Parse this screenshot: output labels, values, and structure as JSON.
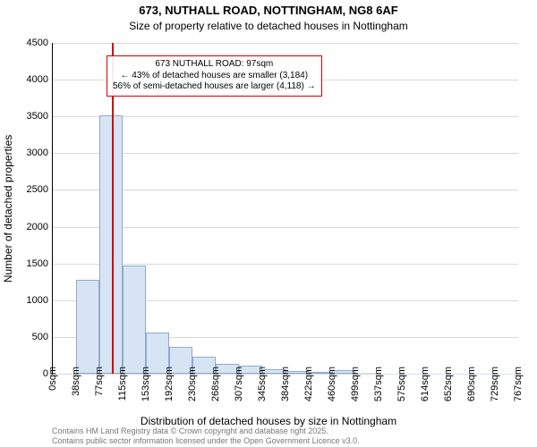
{
  "title": "673, NUTHALL ROAD, NOTTINGHAM, NG8 6AF",
  "subtitle": "Size of property relative to detached houses in Nottingham",
  "ylabel": "Number of detached properties",
  "xlabel": "Distribution of detached houses by size in Nottingham",
  "footnote_line1": "Contains HM Land Registry data © Crown copyright and database right 2025.",
  "footnote_line2": "Contains public sector information licensed under the Open Government Licence v3.0.",
  "chart": {
    "type": "histogram",
    "background_color": "#ffffff",
    "grid_color": "#d8d8d8",
    "axis_color": "#000000",
    "title_fontsize": 13,
    "subtitle_fontsize": 12,
    "label_fontsize": 12,
    "tick_fontsize": 11,
    "footnote_fontsize": 9,
    "footnote_color": "#777777",
    "ylim": [
      0,
      4500
    ],
    "yticks": [
      0,
      500,
      1000,
      1500,
      2000,
      2500,
      3000,
      3500,
      4000,
      4500
    ],
    "xticks": [
      "0sqm",
      "38sqm",
      "77sqm",
      "115sqm",
      "153sqm",
      "192sqm",
      "230sqm",
      "268sqm",
      "307sqm",
      "345sqm",
      "384sqm",
      "422sqm",
      "460sqm",
      "499sqm",
      "537sqm",
      "575sqm",
      "614sqm",
      "652sqm",
      "690sqm",
      "729sqm",
      "767sqm"
    ],
    "bars": {
      "values": [
        0,
        1280,
        3520,
        1470,
        560,
        370,
        230,
        130,
        110,
        60,
        40,
        20,
        50,
        10,
        5,
        5,
        5,
        5,
        5,
        5
      ],
      "fill_color": "#d7e4f4",
      "border_color": "#8faad0",
      "gap_ratio": 0.0
    },
    "marker": {
      "position_sqm": 97,
      "max_sqm": 767,
      "color": "#d40000"
    },
    "annotation": {
      "line1": "673 NUTHALL ROAD: 97sqm",
      "line2": "← 43% of detached houses are smaller (3,184)",
      "line3": "56% of semi-detached houses are larger (4,118) →",
      "border_color": "#d40000",
      "fontsize": 10
    }
  }
}
